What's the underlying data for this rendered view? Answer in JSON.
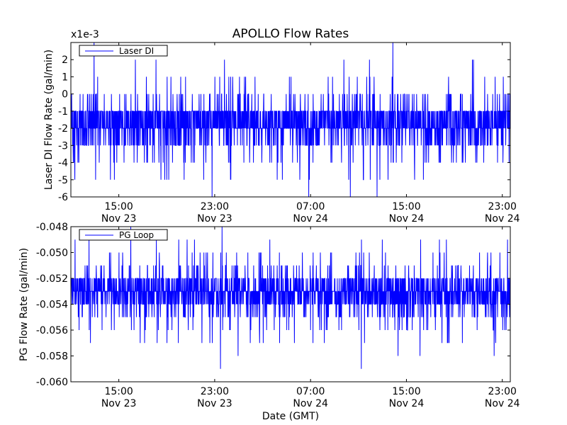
{
  "title": "APOLLO Flow Rates",
  "colors": {
    "series": "#0000ff",
    "axes": "#000000",
    "background": "#ffffff"
  },
  "chart_data": [
    {
      "type": "line",
      "ylabel": "Laser DI Flow Rate (gal/min)",
      "xlabel": "",
      "offset_text": "x1e-3",
      "y_scale_factor": 0.001,
      "ylim": [
        -6,
        3
      ],
      "yticks": [
        -6,
        -5,
        -4,
        -3,
        -2,
        -1,
        0,
        1,
        2
      ],
      "xlim": [
        "Nov 23 11:00",
        "Nov 24 23:40"
      ],
      "xticks": [
        {
          "time": "Nov 23 15:00",
          "label_time": "15:00",
          "label_date": "Nov 23"
        },
        {
          "time": "Nov 23 23:00",
          "label_time": "23:00",
          "label_date": "Nov 23"
        },
        {
          "time": "Nov 24 07:00",
          "label_time": "07:00",
          "label_date": "Nov 24"
        },
        {
          "time": "Nov 24 15:00",
          "label_time": "15:00",
          "label_date": "Nov 24"
        },
        {
          "time": "Nov 24 23:00",
          "label_time": "23:00",
          "label_date": "Nov 24"
        }
      ],
      "legend": {
        "entries": [
          "Laser DI"
        ],
        "loc": "upper left"
      },
      "grid": false,
      "series": [
        {
          "name": "Laser DI",
          "color": "#0000ff",
          "typical_band": [
            -3,
            -1
          ],
          "center": -1.8,
          "observed_min": -6,
          "observed_max": 3,
          "sample_interval_minutes": 1
        }
      ]
    },
    {
      "type": "line",
      "ylabel": "PG Flow Rate (gal/min)",
      "xlabel": "Date (GMT)",
      "ylim": [
        -0.06,
        -0.048
      ],
      "yticks": [
        -0.06,
        -0.058,
        -0.056,
        -0.054,
        -0.052,
        -0.05,
        -0.048
      ],
      "ytick_labels": [
        "-0.060",
        "-0.058",
        "-0.056",
        "-0.054",
        "-0.052",
        "-0.050",
        "-0.048"
      ],
      "xlim": [
        "Nov 23 11:00",
        "Nov 24 23:40"
      ],
      "xticks": [
        {
          "time": "Nov 23 15:00",
          "label_time": "15:00",
          "label_date": "Nov 23"
        },
        {
          "time": "Nov 23 23:00",
          "label_time": "23:00",
          "label_date": "Nov 23"
        },
        {
          "time": "Nov 24 07:00",
          "label_time": "07:00",
          "label_date": "Nov 24"
        },
        {
          "time": "Nov 24 15:00",
          "label_time": "15:00",
          "label_date": "Nov 24"
        },
        {
          "time": "Nov 24 23:00",
          "label_time": "23:00",
          "label_date": "Nov 24"
        }
      ],
      "legend": {
        "entries": [
          "PG Loop"
        ],
        "loc": "upper left"
      },
      "grid": false,
      "series": [
        {
          "name": "PG Loop",
          "color": "#0000ff",
          "typical_band": [
            -0.0545,
            -0.0525
          ],
          "center": -0.0533,
          "observed_min": -0.059,
          "observed_max": -0.048,
          "sample_interval_minutes": 1
        }
      ]
    }
  ]
}
